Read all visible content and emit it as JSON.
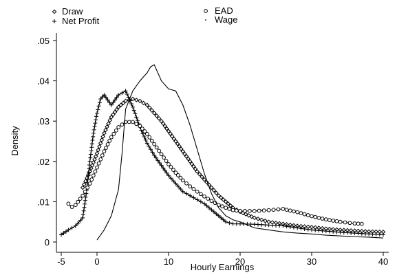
{
  "chart_data": {
    "type": "line",
    "title": "",
    "xlabel": "Hourly Earnings",
    "ylabel": "Density",
    "xlim": [
      -5,
      40
    ],
    "ylim": [
      0,
      0.05
    ],
    "x_ticks": [
      {
        "value": -5,
        "label": "-5"
      },
      {
        "value": 0,
        "label": "0"
      },
      {
        "value": 10,
        "label": "10"
      },
      {
        "value": 20,
        "label": "20"
      },
      {
        "value": 30,
        "label": "30"
      },
      {
        "value": 40,
        "label": "40"
      }
    ],
    "y_ticks": [
      {
        "value": 0,
        "label": "0"
      },
      {
        "value": 0.01,
        "label": ".01"
      },
      {
        "value": 0.02,
        "label": ".02"
      },
      {
        "value": 0.03,
        "label": ".03"
      },
      {
        "value": 0.04,
        "label": ".04"
      },
      {
        "value": 0.05,
        "label": ".05"
      }
    ],
    "grid": false,
    "legend": "top",
    "series": [
      {
        "name": "Draw",
        "marker": "diamond",
        "x": [
          -2,
          -1,
          0,
          1,
          2,
          3,
          4,
          5,
          6,
          7,
          8,
          9,
          10,
          11,
          12,
          13,
          14,
          15,
          16,
          17,
          18,
          19,
          20,
          22,
          24,
          26,
          28,
          30,
          32,
          34,
          36,
          38,
          40
        ],
        "y": [
          0.0135,
          0.0175,
          0.022,
          0.027,
          0.031,
          0.0335,
          0.035,
          0.0355,
          0.035,
          0.034,
          0.032,
          0.03,
          0.0275,
          0.025,
          0.0225,
          0.02,
          0.0175,
          0.0155,
          0.0135,
          0.0115,
          0.01,
          0.0085,
          0.0075,
          0.006,
          0.005,
          0.0045,
          0.004,
          0.0037,
          0.0033,
          0.003,
          0.0028,
          0.0026,
          0.0025
        ]
      },
      {
        "name": "Net Profit",
        "marker": "plus",
        "x": [
          -5,
          -4,
          -3,
          -2,
          -1.5,
          -1,
          -0.5,
          0,
          0.5,
          1,
          2,
          3,
          4,
          5,
          6,
          7,
          8,
          9,
          10,
          11,
          12,
          13,
          14,
          15,
          16,
          17,
          18,
          19,
          20,
          22,
          24,
          26,
          28,
          30,
          32,
          34,
          36,
          38,
          40
        ],
        "y": [
          0.0018,
          0.003,
          0.004,
          0.006,
          0.012,
          0.02,
          0.027,
          0.032,
          0.0355,
          0.0365,
          0.034,
          0.0365,
          0.0375,
          0.0335,
          0.0285,
          0.0245,
          0.0215,
          0.019,
          0.0165,
          0.0145,
          0.0125,
          0.0115,
          0.0105,
          0.0095,
          0.008,
          0.0065,
          0.005,
          0.0045,
          0.0045,
          0.0044,
          0.0042,
          0.004,
          0.0035,
          0.003,
          0.0027,
          0.0024,
          0.0022,
          0.002,
          0.0018
        ]
      },
      {
        "name": "EAD",
        "marker": "circle",
        "x": [
          -4,
          -3.5,
          -3,
          -2,
          -1,
          0,
          1,
          2,
          3,
          4,
          5,
          6,
          7,
          8,
          9,
          10,
          11,
          12,
          13,
          14,
          15,
          16,
          17,
          18,
          19,
          20,
          22,
          24,
          26,
          28,
          30,
          32,
          34,
          36,
          37
        ],
        "y": [
          0.0095,
          0.0087,
          0.0092,
          0.0115,
          0.0145,
          0.0185,
          0.0225,
          0.026,
          0.0285,
          0.0298,
          0.0298,
          0.0288,
          0.0268,
          0.0243,
          0.0218,
          0.0193,
          0.0172,
          0.0153,
          0.0138,
          0.0125,
          0.0113,
          0.0102,
          0.0092,
          0.0085,
          0.0079,
          0.0077,
          0.0077,
          0.0079,
          0.0082,
          0.0074,
          0.0064,
          0.0056,
          0.005,
          0.0046,
          0.0045
        ]
      },
      {
        "name": "Wage",
        "marker": "dot",
        "x": [
          0,
          1,
          2,
          3,
          3.5,
          4,
          5,
          6,
          7,
          7.5,
          8,
          9,
          10,
          11,
          12,
          13,
          14,
          15,
          16,
          17,
          18,
          19,
          20,
          22,
          24,
          26,
          28,
          30,
          32,
          34,
          36,
          38,
          40
        ],
        "y": [
          0.0005,
          0.003,
          0.0065,
          0.013,
          0.022,
          0.033,
          0.0375,
          0.04,
          0.042,
          0.0435,
          0.044,
          0.04,
          0.038,
          0.0375,
          0.034,
          0.029,
          0.023,
          0.017,
          0.012,
          0.0085,
          0.0065,
          0.0055,
          0.005,
          0.0035,
          0.003,
          0.0025,
          0.0022,
          0.002,
          0.0017,
          0.0015,
          0.0013,
          0.0012,
          0.001
        ]
      }
    ]
  }
}
